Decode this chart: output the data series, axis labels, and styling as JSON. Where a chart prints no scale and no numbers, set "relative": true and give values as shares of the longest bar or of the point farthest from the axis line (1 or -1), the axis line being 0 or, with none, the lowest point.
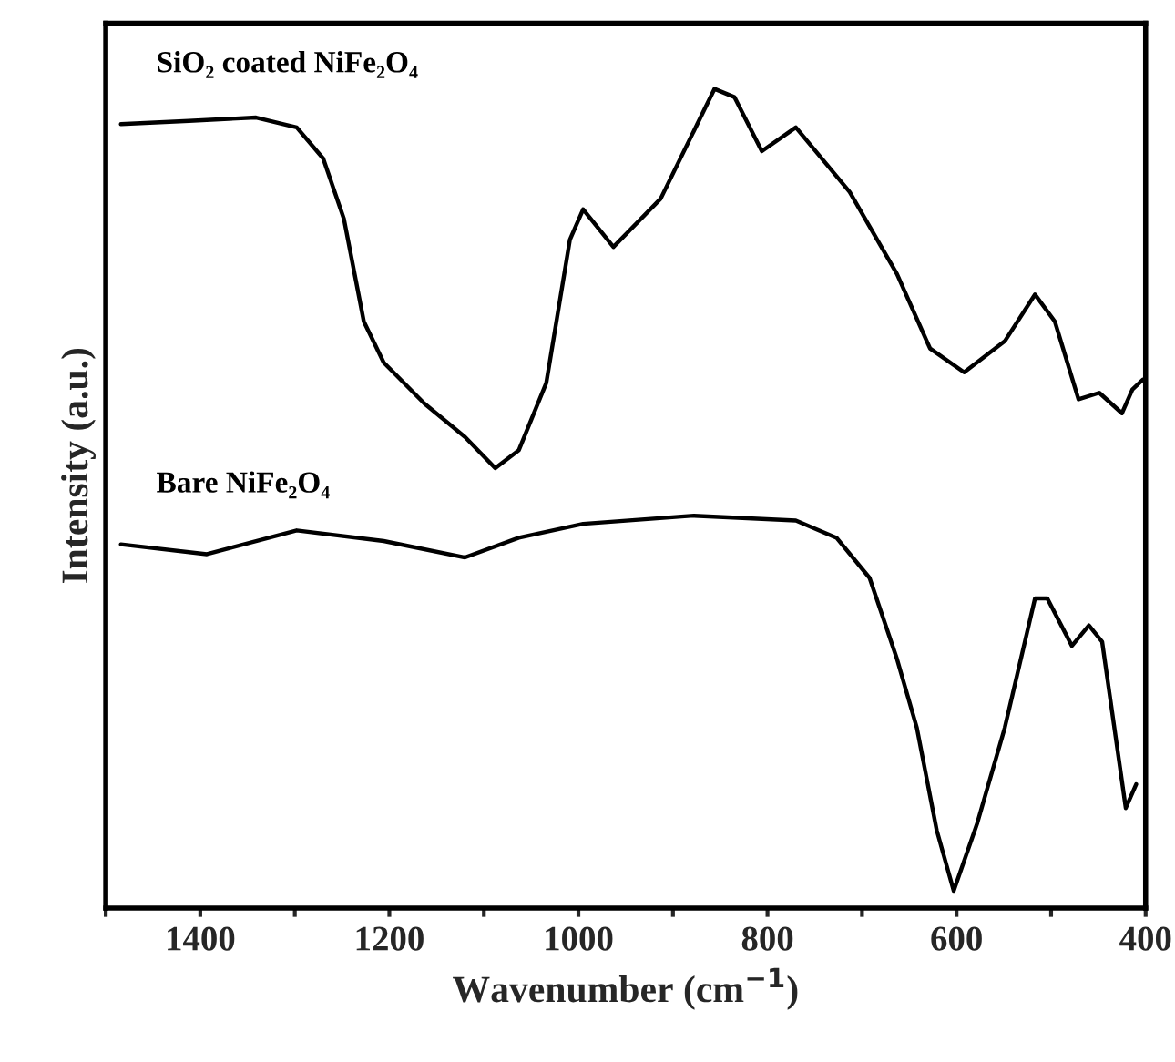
{
  "chart_data": {
    "type": "line",
    "relative": true,
    "xlabel": "Wavenumber (cm$^{−1}$)",
    "ylabel": "Intensity (a.u.)",
    "tick_labels": "x",
    "grid": false,
    "legend": false,
    "xlim": [
      1500,
      400
    ],
    "xticks": [
      {
        "value": 1500,
        "label": null
      },
      1400,
      {
        "value": 1300,
        "label": null
      },
      1200,
      {
        "value": 1100,
        "label": null
      },
      1000,
      {
        "value": 900,
        "label": null
      },
      800,
      {
        "value": 700,
        "label": null
      },
      600,
      {
        "value": 500,
        "label": null
      },
      400
    ],
    "series": [
      {
        "name": "SiO₂ coated NiFe₂O₄",
        "color": "#000000",
        "x": [
          1484,
          1412,
          1341,
          1298,
          1270,
          1248,
          1227,
          1206,
          1163,
          1120,
          1088,
          1063,
          1034,
          1009,
          995,
          963,
          913,
          856,
          835,
          806,
          770,
          713,
          663,
          628,
          592,
          549,
          517,
          496,
          471,
          449,
          425,
          414,
          403
        ],
        "values": [
          0.957,
          0.961,
          0.965,
          0.953,
          0.915,
          0.841,
          0.716,
          0.666,
          0.616,
          0.575,
          0.537,
          0.559,
          0.641,
          0.816,
          0.853,
          0.807,
          0.866,
          1,
          0.99,
          0.924,
          0.953,
          0.874,
          0.774,
          0.683,
          0.654,
          0.692,
          0.749,
          0.716,
          0.621,
          0.629,
          0.604,
          0.633,
          0.645
        ]
      },
      {
        "name": "Bare NiFe₂O₄",
        "color": "#000000",
        "x": [
          1484,
          1393,
          1298,
          1206,
          1120,
          1063,
          995,
          878,
          770,
          727,
          692,
          663,
          642,
          621,
          603,
          578,
          549,
          517,
          504,
          478,
          460,
          446,
          421,
          410
        ],
        "values": [
          0.444,
          0.432,
          0.461,
          0.448,
          0.428,
          0.452,
          0.469,
          0.479,
          0.473,
          0.452,
          0.403,
          0.304,
          0.22,
          0.095,
          0.021,
          0.104,
          0.22,
          0.378,
          0.378,
          0.32,
          0.345,
          0.325,
          0.122,
          0.151
        ]
      }
    ]
  }
}
